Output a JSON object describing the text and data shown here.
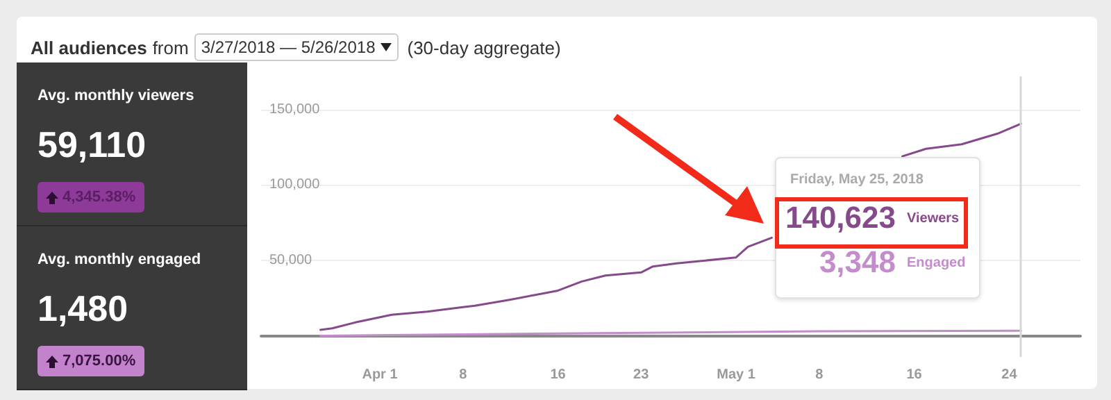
{
  "chart_data": {
    "type": "line",
    "title": "All audiences",
    "annotations": [
      "from",
      "3/27/2018 — 5/26/2018",
      "(30-day aggregate)",
      "Avg. monthly viewers",
      "59,110",
      "4,345.38%",
      "Avg. monthly engaged",
      "1,480",
      "7,075.00%",
      "Friday, May 25, 2018",
      "140,623",
      "3,348"
    ],
    "series": [
      {
        "name": "Viewers",
        "color": "#864a8c",
        "x": [
          "2018-03-27",
          "2018-03-28",
          "2018-03-30",
          "2018-04-02",
          "2018-04-05",
          "2018-04-08",
          "2018-04-09",
          "2018-04-12",
          "2018-04-14",
          "2018-04-16",
          "2018-04-18",
          "2018-04-20",
          "2018-04-23",
          "2018-04-24",
          "2018-04-26",
          "2018-05-01",
          "2018-05-02",
          "2018-05-04",
          "2018-05-10",
          "2018-05-15",
          "2018-05-17",
          "2018-05-20",
          "2018-05-23",
          "2018-05-25"
        ],
        "values": [
          4000,
          5000,
          9000,
          14000,
          16000,
          19000,
          20000,
          24000,
          27000,
          30000,
          36000,
          40000,
          42000,
          46000,
          48000,
          52000,
          59000,
          65000,
          null,
          119000,
          124000,
          127000,
          134000,
          140623
        ]
      },
      {
        "name": "Engaged",
        "color": "#c48ccc",
        "x": [
          "2018-03-27",
          "2018-04-08",
          "2018-04-23",
          "2018-05-08",
          "2018-05-25"
        ],
        "values": [
          0,
          1000,
          2000,
          3000,
          3348
        ]
      }
    ],
    "xlim": [
      "2018-03-22",
      "2018-05-30"
    ],
    "xticks": [
      {
        "value": "2018-04-01",
        "label": "Apr 1"
      },
      {
        "value": "2018-04-08",
        "label": "8"
      },
      {
        "value": "2018-04-16",
        "label": "16"
      },
      {
        "value": "2018-04-23",
        "label": "23"
      },
      {
        "value": "2018-05-01",
        "label": "May 1"
      },
      {
        "value": "2018-05-08",
        "label": "8"
      },
      {
        "value": "2018-05-16",
        "label": "16"
      },
      {
        "value": "2018-05-24",
        "label": "24"
      }
    ],
    "ylim": [
      -14000,
      172000
    ],
    "yticks": [
      {
        "value": 50000,
        "label": "50,000"
      },
      {
        "value": 100000,
        "label": "100,000"
      },
      {
        "value": 150000,
        "label": "150,000"
      }
    ],
    "grid": "y",
    "legend": false,
    "line_style": "solid",
    "ref_lines": [
      {
        "axis": "x",
        "value": "2018-05-25",
        "label": null,
        "color": "#d8d8d8"
      }
    ]
  }
}
